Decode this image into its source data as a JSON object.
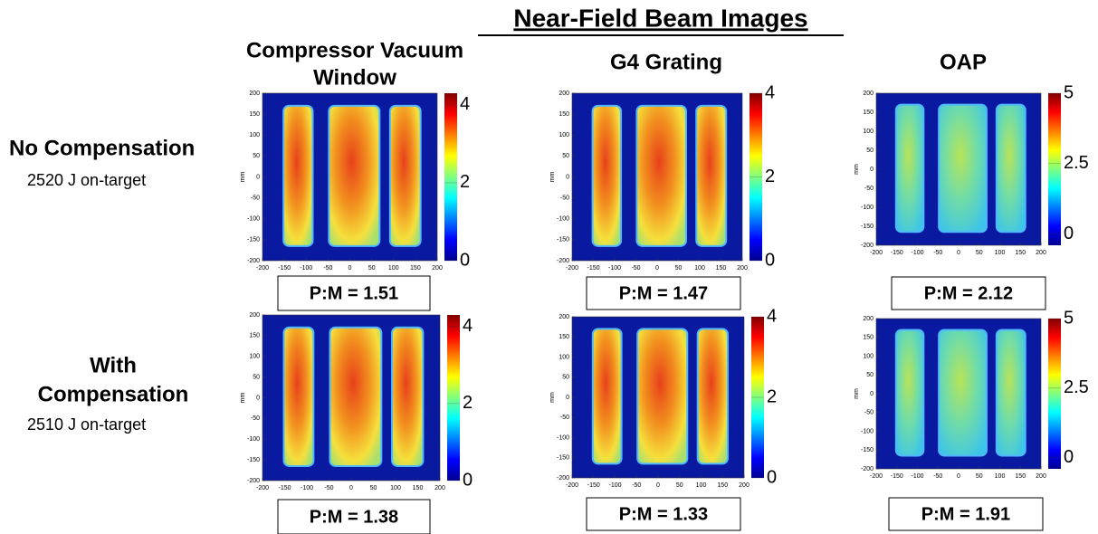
{
  "title": "Near-Field Beam Images",
  "columns": [
    {
      "header": [
        "Compressor Vacuum",
        "Window"
      ],
      "colorbar_ticks": [
        0,
        2,
        4
      ],
      "clim": [
        0,
        4.3
      ]
    },
    {
      "header": [
        "G4 Grating"
      ],
      "colorbar_ticks": [
        0,
        2,
        4
      ],
      "clim": [
        0,
        4
      ]
    },
    {
      "header": [
        "OAP"
      ],
      "colorbar_ticks": [
        0,
        2.5,
        5
      ],
      "clim": [
        -0.4,
        5
      ]
    }
  ],
  "rows": [
    {
      "label": [
        "No Compensation"
      ],
      "energy": "2520 J on-target",
      "panels": [
        {
          "ratio": "P:M = 1.51"
        },
        {
          "ratio": "P:M = 1.47"
        },
        {
          "ratio": "P:M = 2.12"
        }
      ]
    },
    {
      "label": [
        "With",
        "Compensation"
      ],
      "energy": "2510 J on-target",
      "panels": [
        {
          "ratio": "P:M = 1.38"
        },
        {
          "ratio": "P:M = 1.33"
        },
        {
          "ratio": "P:M = 1.91"
        }
      ]
    }
  ],
  "axes": {
    "xticks": [
      -200,
      -150,
      -100,
      -50,
      0,
      50,
      100,
      150,
      200
    ],
    "yticks": [
      -200,
      -150,
      -100,
      -50,
      0,
      50,
      100,
      150,
      200
    ],
    "ylabel": "mm"
  }
}
